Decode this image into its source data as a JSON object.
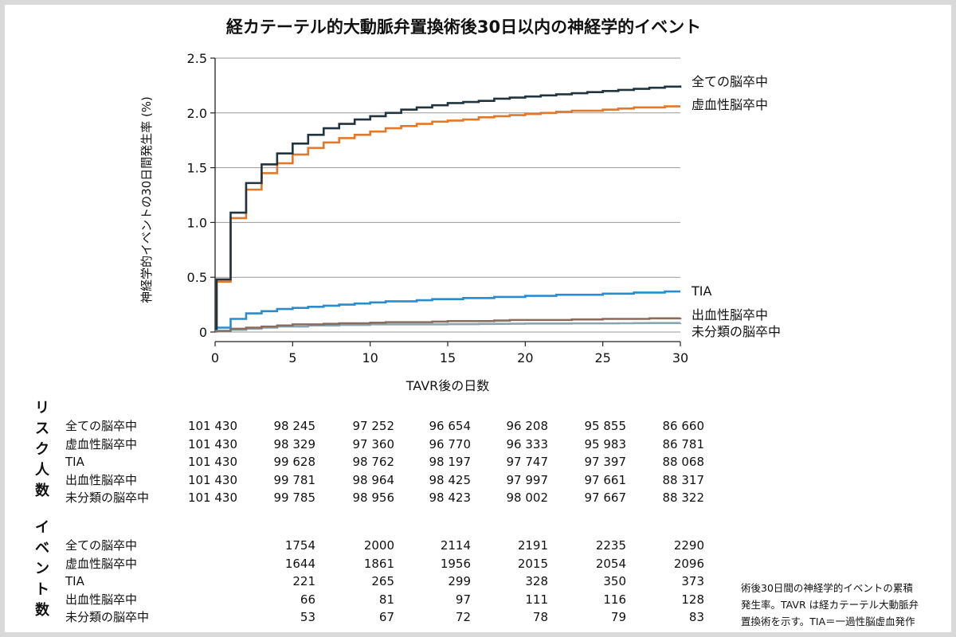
{
  "title": "経カテーテル的大動脈弁置換術後30日以内の神経学的イベント",
  "chart_data": {
    "type": "line",
    "title": "経カテーテル的大動脈弁置換術後30日以内の神経学的イベント",
    "xlabel": "TAVR後の日数",
    "ylabel": "神経学的イベントの30日間発生率 (%)",
    "xlim": [
      0,
      30
    ],
    "ylim": [
      0,
      2.5
    ],
    "xticks": [
      "0",
      "5",
      "10",
      "15",
      "20",
      "25",
      "30"
    ],
    "yticks": [
      "0",
      "0.5",
      "1.0",
      "1.5",
      "2.0",
      "2.5"
    ],
    "ytick_values": [
      0,
      0.5,
      1.0,
      1.5,
      2.0,
      2.5
    ],
    "xtick_values": [
      0,
      5,
      10,
      15,
      20,
      25,
      30
    ],
    "grid": true,
    "x": [
      0,
      0.1,
      1,
      2,
      3,
      4,
      5,
      6,
      7,
      8,
      9,
      10,
      11,
      12,
      13,
      14,
      15,
      16,
      17,
      18,
      19,
      20,
      21,
      22,
      23,
      24,
      25,
      26,
      27,
      28,
      29,
      30
    ],
    "series": [
      {
        "name": "全ての脳卒中",
        "color": "#21343f",
        "values": [
          0.03,
          0.48,
          1.09,
          1.36,
          1.53,
          1.63,
          1.72,
          1.8,
          1.86,
          1.9,
          1.94,
          1.97,
          2.0,
          2.03,
          2.05,
          2.07,
          2.09,
          2.1,
          2.11,
          2.13,
          2.14,
          2.15,
          2.16,
          2.17,
          2.18,
          2.19,
          2.2,
          2.21,
          2.22,
          2.23,
          2.24,
          2.25
        ]
      },
      {
        "name": "虚血性脳卒中",
        "color": "#e0792b",
        "values": [
          0.03,
          0.46,
          1.04,
          1.3,
          1.45,
          1.54,
          1.62,
          1.68,
          1.73,
          1.77,
          1.8,
          1.83,
          1.86,
          1.88,
          1.9,
          1.92,
          1.93,
          1.94,
          1.96,
          1.97,
          1.98,
          1.99,
          2.0,
          2.01,
          2.02,
          2.02,
          2.03,
          2.04,
          2.05,
          2.05,
          2.06,
          2.06
        ]
      },
      {
        "name": "TIA",
        "color": "#2b8ccb",
        "values": [
          0.02,
          0.04,
          0.12,
          0.17,
          0.19,
          0.21,
          0.22,
          0.23,
          0.24,
          0.25,
          0.26,
          0.27,
          0.28,
          0.28,
          0.29,
          0.3,
          0.3,
          0.31,
          0.31,
          0.32,
          0.32,
          0.33,
          0.33,
          0.34,
          0.34,
          0.34,
          0.35,
          0.35,
          0.36,
          0.36,
          0.37,
          0.37
        ]
      },
      {
        "name": "出血性脳卒中",
        "color": "#8a6b5c",
        "values": [
          0.005,
          0.01,
          0.03,
          0.04,
          0.05,
          0.06,
          0.07,
          0.07,
          0.075,
          0.08,
          0.08,
          0.085,
          0.09,
          0.09,
          0.09,
          0.095,
          0.1,
          0.1,
          0.1,
          0.105,
          0.11,
          0.11,
          0.11,
          0.11,
          0.115,
          0.115,
          0.12,
          0.12,
          0.12,
          0.125,
          0.125,
          0.13
        ]
      },
      {
        "name": "未分類の脳卒中",
        "color": "#8aa5b0",
        "values": [
          0.005,
          0.01,
          0.02,
          0.03,
          0.04,
          0.05,
          0.05,
          0.06,
          0.06,
          0.065,
          0.065,
          0.07,
          0.07,
          0.07,
          0.07,
          0.07,
          0.072,
          0.072,
          0.074,
          0.075,
          0.076,
          0.078,
          0.078,
          0.078,
          0.079,
          0.079,
          0.079,
          0.08,
          0.081,
          0.082,
          0.082,
          0.083
        ]
      }
    ],
    "legend_labels": [
      "全ての脳卒中",
      "虚血性脳卒中",
      "TIA",
      "出血性脳卒中",
      "未分類の脳卒中"
    ]
  },
  "risk_table": {
    "title": "リスク人数",
    "rows": [
      {
        "label": "全ての脳卒中",
        "values": [
          "101 430",
          "98 245",
          "97 252",
          "96 654",
          "96 208",
          "95 855",
          "86 660"
        ]
      },
      {
        "label": "虚血性脳卒中",
        "values": [
          "101 430",
          "98 329",
          "97 360",
          "96 770",
          "96 333",
          "95 983",
          "86 781"
        ]
      },
      {
        "label": "TIA",
        "values": [
          "101 430",
          "99 628",
          "98 762",
          "98 197",
          "97 747",
          "97 397",
          "88 068"
        ]
      },
      {
        "label": "出血性脳卒中",
        "values": [
          "101 430",
          "99 781",
          "98 964",
          "98 425",
          "97 997",
          "97 661",
          "88 317"
        ]
      },
      {
        "label": "未分類の脳卒中",
        "values": [
          "101 430",
          "99 785",
          "98 956",
          "98 423",
          "98 002",
          "97 667",
          "88 322"
        ]
      }
    ]
  },
  "event_table": {
    "title": "イベント数",
    "rows": [
      {
        "label": "全ての脳卒中",
        "values": [
          "1754",
          "2000",
          "2114",
          "2191",
          "2235",
          "2290"
        ]
      },
      {
        "label": "虚血性脳卒中",
        "values": [
          "1644",
          "1861",
          "1956",
          "2015",
          "2054",
          "2096"
        ]
      },
      {
        "label": "TIA",
        "values": [
          "221",
          "265",
          "299",
          "328",
          "350",
          "373"
        ]
      },
      {
        "label": "出血性脳卒中",
        "values": [
          "66",
          "81",
          "97",
          "111",
          "116",
          "128"
        ]
      },
      {
        "label": "未分類の脳卒中",
        "values": [
          "53",
          "67",
          "72",
          "78",
          "79",
          "83"
        ]
      }
    ]
  },
  "footnote": {
    "line1": "術後30日間の神経学的イベントの累積",
    "line2": "発生率。TAVR は経カテーテル大動脈弁",
    "line3": "置換術を示す。TIA＝一過性脳虚血発作"
  }
}
